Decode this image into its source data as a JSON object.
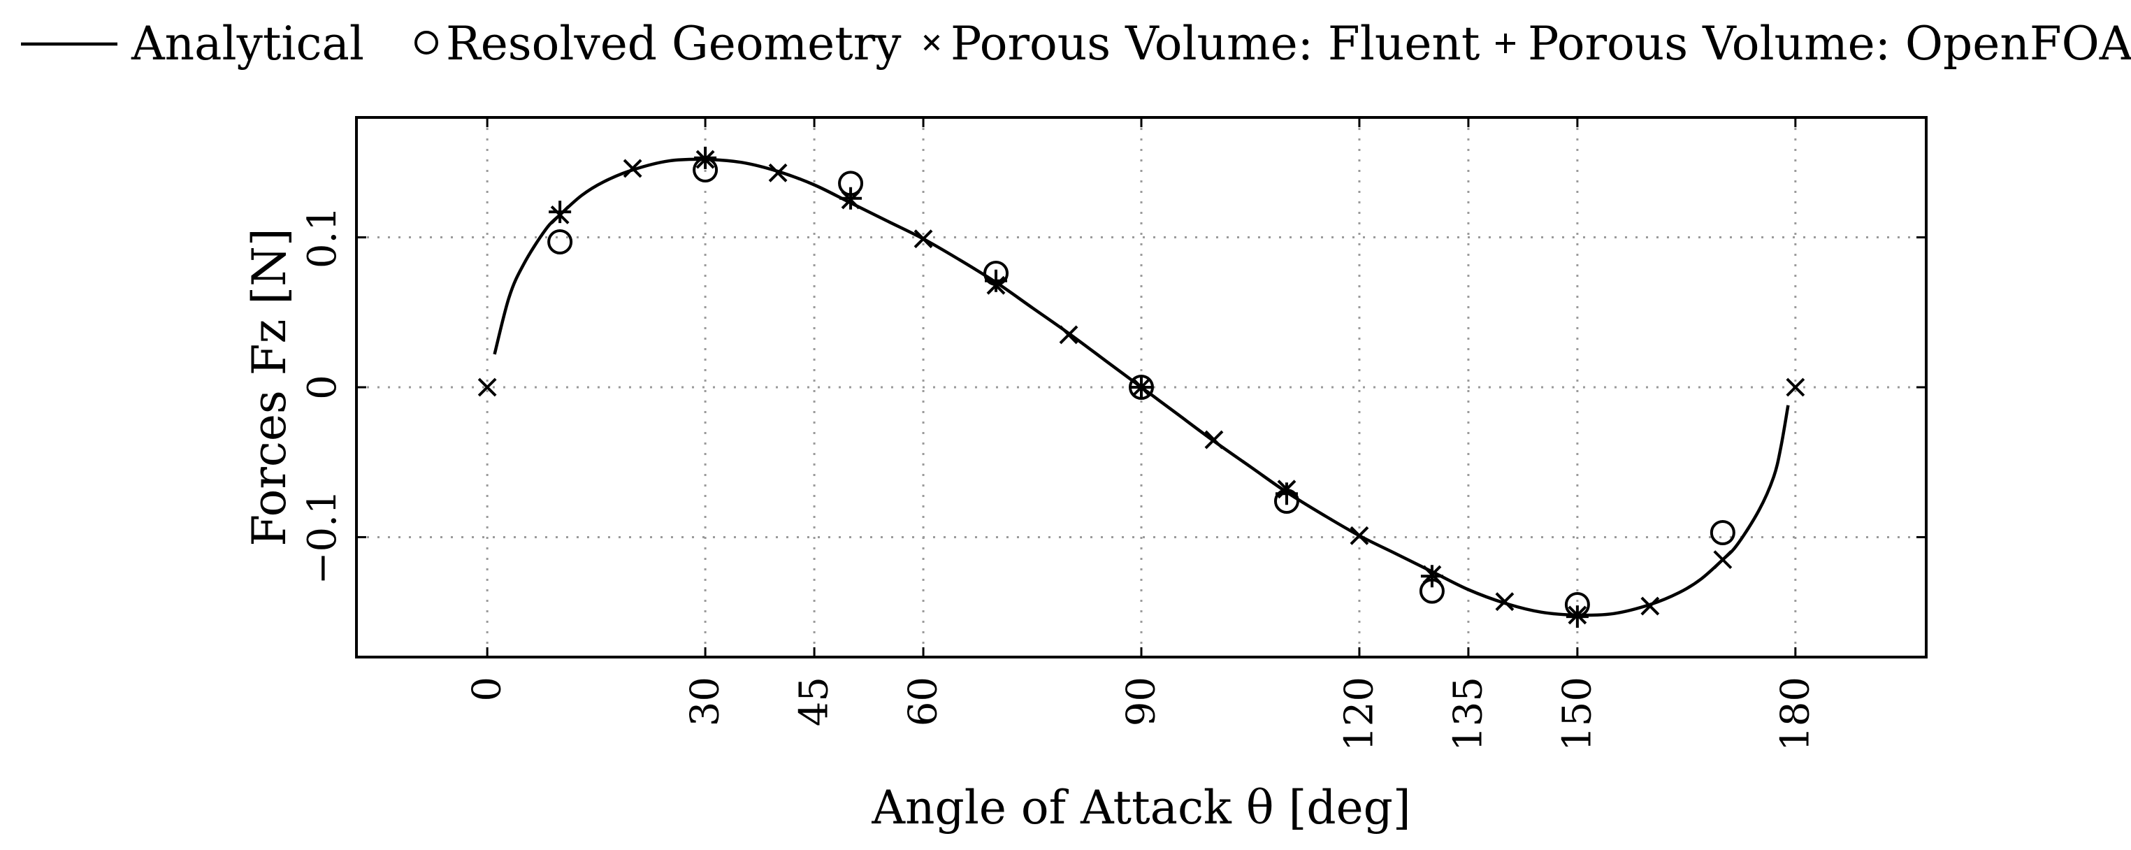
{
  "chart_data": {
    "type": "line",
    "xlabel": "Angle of Attack θ [deg]",
    "ylabel": "Forces Fz [N]",
    "xlim": [
      -18,
      198
    ],
    "ylim": [
      -0.18,
      0.18
    ],
    "xticks": [
      {
        "value": 0,
        "label": "0"
      },
      {
        "value": 30,
        "label": "30"
      },
      {
        "value": 45,
        "label": "45"
      },
      {
        "value": 60,
        "label": "60"
      },
      {
        "value": 90,
        "label": "90"
      },
      {
        "value": 120,
        "label": "120"
      },
      {
        "value": 135,
        "label": "135"
      },
      {
        "value": 150,
        "label": "150"
      },
      {
        "value": 180,
        "label": "180"
      }
    ],
    "yticks": [
      {
        "value": -0.1,
        "label": "−0.1"
      },
      {
        "value": 0,
        "label": "0"
      },
      {
        "value": 0.1,
        "label": "0.1"
      }
    ],
    "grid": true,
    "legend_position": "top",
    "series": [
      {
        "name": "Analytical",
        "marker": "line",
        "x": [
          1,
          3,
          5,
          8,
          10,
          13,
          16,
          20,
          25,
          30,
          35,
          40,
          45,
          50,
          55,
          60,
          65,
          70,
          75,
          80,
          85,
          90,
          95,
          100,
          105,
          110,
          115,
          120,
          125,
          130,
          135,
          140,
          145,
          150,
          155,
          160,
          164,
          167,
          170,
          172,
          175,
          177,
          178,
          179
        ],
        "y": [
          0.022,
          0.06,
          0.082,
          0.105,
          0.115,
          0.128,
          0.137,
          0.145,
          0.151,
          0.152,
          0.15,
          0.144,
          0.135,
          0.123,
          0.111,
          0.099,
          0.085,
          0.07,
          0.053,
          0.036,
          0.018,
          0.0,
          -0.018,
          -0.036,
          -0.053,
          -0.07,
          -0.085,
          -0.099,
          -0.111,
          -0.123,
          -0.135,
          -0.144,
          -0.15,
          -0.152,
          -0.151,
          -0.145,
          -0.137,
          -0.128,
          -0.115,
          -0.105,
          -0.082,
          -0.06,
          -0.04,
          -0.012
        ]
      },
      {
        "name": "Resolved Geometry",
        "marker": "circle",
        "x": [
          10,
          30,
          50,
          70,
          90,
          110,
          130,
          150,
          170
        ],
        "y": [
          0.097,
          0.145,
          0.136,
          0.076,
          0.0,
          -0.076,
          -0.136,
          -0.145,
          -0.097
        ]
      },
      {
        "name": "Porous Volume: Fluent",
        "marker": "x",
        "x": [
          0,
          10,
          20,
          30,
          40,
          50,
          60,
          70,
          80,
          90,
          100,
          110,
          120,
          130,
          140,
          150,
          160,
          170,
          180
        ],
        "y": [
          0.0,
          0.115,
          0.146,
          0.152,
          0.143,
          0.125,
          0.099,
          0.068,
          0.035,
          0.0,
          -0.035,
          -0.068,
          -0.099,
          -0.125,
          -0.143,
          -0.152,
          -0.146,
          -0.115,
          0.0
        ]
      },
      {
        "name": "Porous Volume: OpenFOAM",
        "marker": "plus",
        "x": [
          10,
          30,
          50,
          70,
          90,
          110,
          130,
          150
        ],
        "y": [
          0.117,
          0.153,
          0.126,
          0.071,
          0.0,
          -0.071,
          -0.126,
          -0.153
        ]
      }
    ]
  }
}
